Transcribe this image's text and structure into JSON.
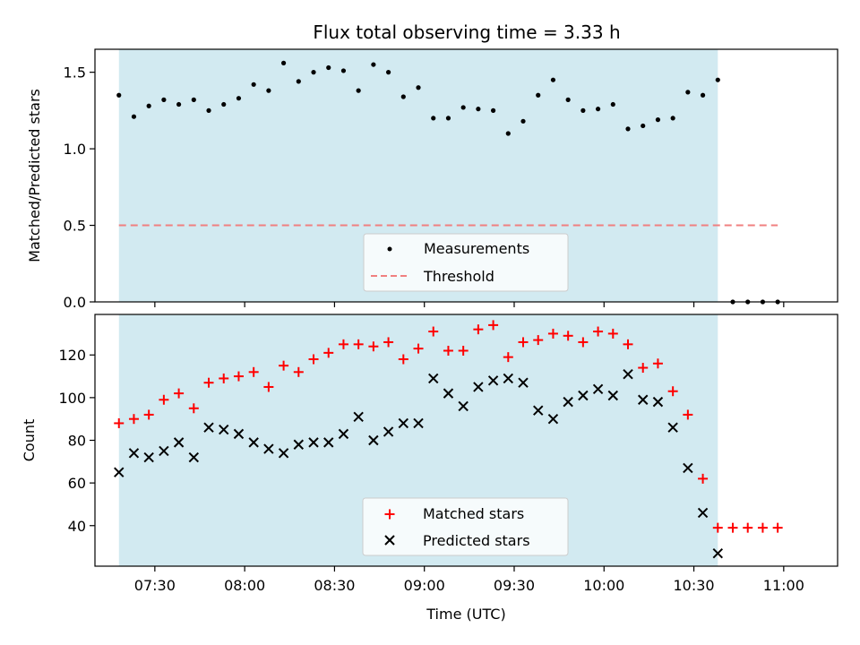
{
  "chart_data": [
    {
      "type": "scatter",
      "title": "Flux total observing time = 3.33 h",
      "xlabel": "",
      "ylabel": "Matched/Predicted stars",
      "ylim": [
        0,
        1.65
      ],
      "yticks": [
        0.0,
        0.5,
        1.0,
        1.5
      ],
      "ytick_labels": [
        "0.0",
        "0.5",
        "1.0",
        "1.5"
      ],
      "xlim": [
        "07:10",
        "11:18"
      ],
      "x_ticks_shown_labels": false,
      "observing_window": {
        "start": "07:18",
        "end": "10:38",
        "color": "#add8e6"
      },
      "legend": {
        "placement": "lower-center"
      },
      "series": [
        {
          "name": "Measurements",
          "style": "dot",
          "color": "#000000",
          "x": [
            "07:18",
            "07:23",
            "07:28",
            "07:33",
            "07:38",
            "07:43",
            "07:48",
            "07:53",
            "07:58",
            "08:03",
            "08:08",
            "08:13",
            "08:18",
            "08:23",
            "08:28",
            "08:33",
            "08:38",
            "08:43",
            "08:48",
            "08:53",
            "08:58",
            "09:03",
            "09:08",
            "09:13",
            "09:18",
            "09:23",
            "09:28",
            "09:33",
            "09:38",
            "09:43",
            "09:48",
            "09:53",
            "09:58",
            "10:03",
            "10:08",
            "10:13",
            "10:18",
            "10:23",
            "10:28",
            "10:33",
            "10:38",
            "10:43",
            "10:48",
            "10:53",
            "10:58"
          ],
          "y": [
            1.35,
            1.21,
            1.28,
            1.32,
            1.29,
            1.32,
            1.25,
            1.29,
            1.33,
            1.42,
            1.38,
            1.56,
            1.44,
            1.5,
            1.53,
            1.51,
            1.38,
            1.55,
            1.5,
            1.34,
            1.4,
            1.2,
            1.2,
            1.27,
            1.26,
            1.25,
            1.1,
            1.18,
            1.35,
            1.45,
            1.32,
            1.25,
            1.26,
            1.29,
            1.13,
            1.15,
            1.19,
            1.2,
            1.37,
            1.35,
            1.45,
            0.0,
            0.0,
            0.0,
            0.0
          ]
        },
        {
          "name": "Threshold",
          "style": "dashed-line",
          "color": "#f08080",
          "x": [
            "07:18",
            "10:58"
          ],
          "y": [
            0.5,
            0.5
          ]
        }
      ]
    },
    {
      "type": "scatter",
      "title": "",
      "xlabel": "Time (UTC)",
      "ylabel": "Count",
      "ylim": [
        21,
        139
      ],
      "yticks": [
        40,
        60,
        80,
        100,
        120
      ],
      "ytick_labels": [
        "40",
        "60",
        "80",
        "100",
        "120"
      ],
      "xlim": [
        "07:10",
        "11:18"
      ],
      "xticks": [
        "07:30",
        "08:00",
        "08:30",
        "09:00",
        "09:30",
        "10:00",
        "10:30",
        "11:00"
      ],
      "xtick_labels": [
        "07:30",
        "08:00",
        "08:30",
        "09:00",
        "09:30",
        "10:00",
        "10:30",
        "11:00"
      ],
      "observing_window": {
        "start": "07:18",
        "end": "10:38",
        "color": "#add8e6"
      },
      "legend": {
        "placement": "lower-center"
      },
      "series": [
        {
          "name": "Matched stars",
          "style": "plus",
          "color": "#ff0000",
          "x": [
            "07:18",
            "07:23",
            "07:28",
            "07:33",
            "07:38",
            "07:43",
            "07:48",
            "07:53",
            "07:58",
            "08:03",
            "08:08",
            "08:13",
            "08:18",
            "08:23",
            "08:28",
            "08:33",
            "08:38",
            "08:43",
            "08:48",
            "08:53",
            "08:58",
            "09:03",
            "09:08",
            "09:13",
            "09:18",
            "09:23",
            "09:28",
            "09:33",
            "09:38",
            "09:43",
            "09:48",
            "09:53",
            "09:58",
            "10:03",
            "10:08",
            "10:13",
            "10:18",
            "10:23",
            "10:28",
            "10:33",
            "10:38",
            "10:43",
            "10:48",
            "10:53",
            "10:58"
          ],
          "y": [
            88,
            90,
            92,
            99,
            102,
            95,
            107,
            109,
            110,
            112,
            105,
            115,
            112,
            118,
            121,
            125,
            125,
            124,
            126,
            118,
            123,
            131,
            122,
            122,
            132,
            134,
            119,
            126,
            127,
            130,
            129,
            126,
            131,
            130,
            125,
            114,
            116,
            103,
            92,
            62,
            39,
            39,
            39,
            39,
            39
          ]
        },
        {
          "name": "Predicted stars",
          "style": "x",
          "color": "#000000",
          "x": [
            "07:18",
            "07:23",
            "07:28",
            "07:33",
            "07:38",
            "07:43",
            "07:48",
            "07:53",
            "07:58",
            "08:03",
            "08:08",
            "08:13",
            "08:18",
            "08:23",
            "08:28",
            "08:33",
            "08:38",
            "08:43",
            "08:48",
            "08:53",
            "08:58",
            "09:03",
            "09:08",
            "09:13",
            "09:18",
            "09:23",
            "09:28",
            "09:33",
            "09:38",
            "09:43",
            "09:48",
            "09:53",
            "09:58",
            "10:03",
            "10:08",
            "10:13",
            "10:18",
            "10:23",
            "10:28",
            "10:33",
            "10:38"
          ],
          "y": [
            65,
            74,
            72,
            75,
            79,
            72,
            86,
            85,
            83,
            79,
            76,
            74,
            78,
            79,
            79,
            83,
            91,
            80,
            84,
            88,
            88,
            109,
            102,
            96,
            105,
            108,
            109,
            107,
            94,
            90,
            98,
            101,
            104,
            101,
            111,
            99,
            98,
            86,
            67,
            46,
            27
          ]
        }
      ]
    }
  ]
}
